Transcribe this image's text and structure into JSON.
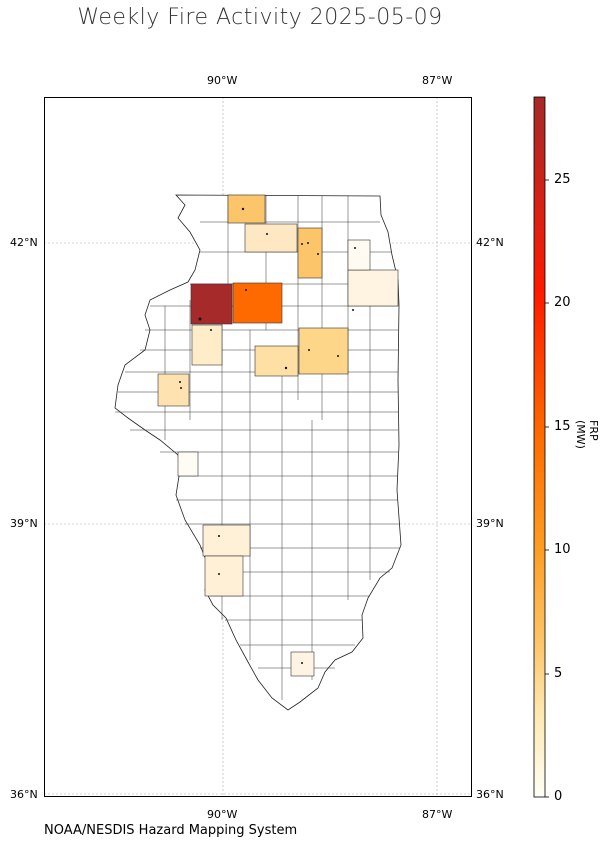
{
  "title": "Weekly Fire Activity 2025-05-09",
  "credit": "NOAA/NESDIS Hazard Mapping System",
  "lon_ticks": [
    "90°W",
    "87°W"
  ],
  "lat_ticks": [
    "42°N",
    "39°N",
    "36°N"
  ],
  "colorbar": {
    "label": "FRP (MW)",
    "ticks": [
      "0",
      "5",
      "10",
      "15",
      "20",
      "25"
    ],
    "colors": {
      "low": "#fffff5",
      "mid1": "#fee8b0",
      "mid2": "#fdc56a",
      "mid3": "#fd9c20",
      "mid4": "#fe6a00",
      "mid5": "#ff1a00",
      "high": "#a62a2a"
    }
  },
  "chart_data": {
    "type": "choropleth",
    "region": "Illinois counties",
    "value_label": "FRP (MW)",
    "vmin": 0,
    "vmax": 28,
    "highlighted_counties_frp": [
      {
        "location": "north-west",
        "frp": 28
      },
      {
        "location": "north-central",
        "frp": 13
      },
      {
        "location": "northern-border",
        "frp": 5
      },
      {
        "location": "north-east",
        "frp": 5
      },
      {
        "location": "central-east",
        "frp": 4
      },
      {
        "location": "west-central",
        "frp": 3
      },
      {
        "location": "central",
        "frp": 3
      },
      {
        "location": "north",
        "frp": 2
      },
      {
        "location": "north-west-2",
        "frp": 2
      },
      {
        "location": "south-west",
        "frp": 2
      },
      {
        "location": "south-west-2",
        "frp": 2
      },
      {
        "location": "east",
        "frp": 1
      },
      {
        "location": "south",
        "frp": 1
      }
    ]
  }
}
